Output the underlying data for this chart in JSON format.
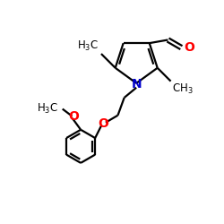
{
  "bg_color": "#ffffff",
  "bond_color": "#000000",
  "N_color": "#0000cd",
  "O_color": "#ff0000",
  "line_width": 1.6,
  "font_size": 8.5,
  "fig_size": [
    2.5,
    2.5
  ],
  "dpi": 100,
  "xlim": [
    0,
    10
  ],
  "ylim": [
    0,
    10
  ]
}
